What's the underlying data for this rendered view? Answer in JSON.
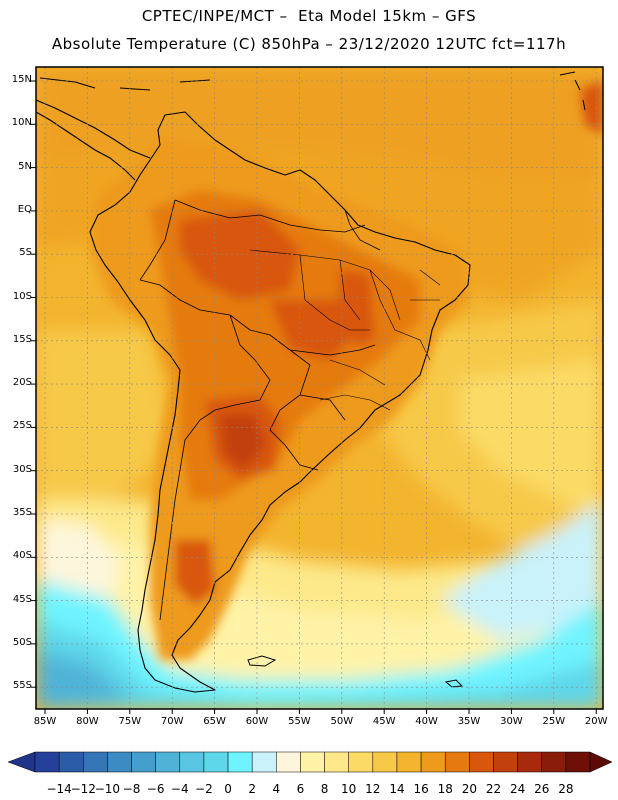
{
  "header": {
    "line1": "CPTEC/INPE/MCT –  Eta Model 15km – GFS",
    "line2": "Absolute Temperature (C) 850hPa – 23/12/2020 12UTC fct=117h"
  },
  "map": {
    "lat_labels": [
      "15N",
      "10N",
      "5N",
      "EQ",
      "5S",
      "10S",
      "15S",
      "20S",
      "25S",
      "30S",
      "35S",
      "40S",
      "45S",
      "50S",
      "55S"
    ],
    "lon_labels": [
      "85W",
      "80W",
      "75W",
      "70W",
      "65W",
      "60W",
      "55W",
      "50W",
      "45W",
      "40W",
      "35W",
      "30W",
      "25W",
      "20W"
    ]
  },
  "colorbar": {
    "labels": [
      "-14",
      "-12",
      "-10",
      "-8",
      "-6",
      "-4",
      "-2",
      "0",
      "2",
      "4",
      "6",
      "8",
      "10",
      "12",
      "14",
      "16",
      "18",
      "20",
      "22",
      "24",
      "26",
      "28"
    ],
    "colors": [
      "#24409a",
      "#2b5ca8",
      "#3475b6",
      "#3d8bc3",
      "#459fcd",
      "#4fb3d8",
      "#58c6e2",
      "#5fd7ea",
      "#6ff4ff",
      "#c9f2fa",
      "#fdf6dc",
      "#fff3a8",
      "#fde98a",
      "#fbdb66",
      "#f7c948",
      "#f3b42e",
      "#ee9a1c",
      "#e57a10",
      "#d8570c",
      "#c2400c",
      "#a82a0c",
      "#8a1c0a",
      "#6e1008"
    ],
    "left_arrow_color": "#20358a",
    "right_arrow_color": "#5c0a05"
  }
}
